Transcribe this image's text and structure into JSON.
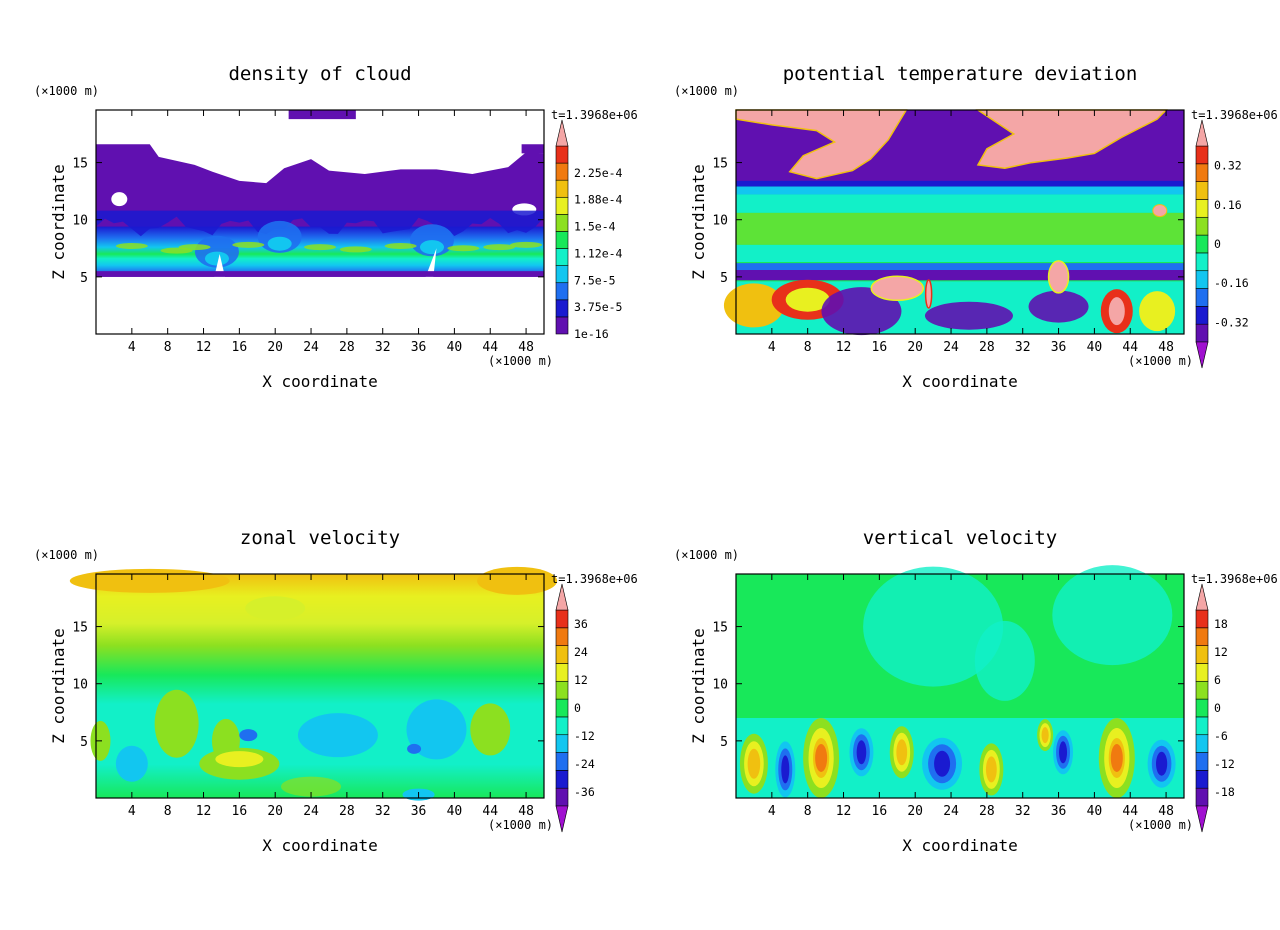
{
  "palette": [
    "#6010b0",
    "#1a1ad0",
    "#1f6ff0",
    "#12c6f0",
    "#12f0c8",
    "#18e85a",
    "#8ce020",
    "#e8f020",
    "#f0c010",
    "#f07a10",
    "#e8301a"
  ],
  "over_color": "#f4a6a6",
  "under_color": "#a010d0",
  "chart_data": [
    {
      "type": "heatmap",
      "title": "density of cloud",
      "xlabel": "X coordinate",
      "ylabel": "Z coordinate",
      "x_unit": "(×1000 m)",
      "y_unit": "(×1000 m)",
      "time_label": "t=1.3968e+06",
      "xlim": [
        0,
        50
      ],
      "ylim": [
        0,
        19.6
      ],
      "x_ticks": [
        "4",
        "8",
        "12",
        "16",
        "20",
        "24",
        "28",
        "32",
        "36",
        "40",
        "44",
        "48"
      ],
      "y_ticks": [
        "5",
        "10",
        "15"
      ],
      "colorbar_labels": [
        "1e-16",
        "3.75e-5",
        "7.5e-5",
        "1.12e-4",
        "1.5e-4",
        "1.88e-4",
        "2.25e-4"
      ],
      "colorbar_upper_arrow": true,
      "colorbar_lower_arrow": false
    },
    {
      "type": "heatmap",
      "title": "potential temperature deviation",
      "xlabel": "X coordinate",
      "ylabel": "Z coordinate",
      "x_unit": "(×1000 m)",
      "y_unit": "(×1000 m)",
      "time_label": "t=1.3968e+06",
      "xlim": [
        0,
        50
      ],
      "ylim": [
        0,
        19.6
      ],
      "x_ticks": [
        "4",
        "8",
        "12",
        "16",
        "20",
        "24",
        "28",
        "32",
        "36",
        "40",
        "44",
        "48"
      ],
      "y_ticks": [
        "5",
        "10",
        "15"
      ],
      "colorbar_labels": [
        "-0.32",
        "-0.16",
        "0",
        "0.16",
        "0.32"
      ],
      "colorbar_upper_arrow": true,
      "colorbar_lower_arrow": true
    },
    {
      "type": "heatmap",
      "title": "zonal velocity",
      "xlabel": "X coordinate",
      "ylabel": "Z coordinate",
      "x_unit": "(×1000 m)",
      "y_unit": "(×1000 m)",
      "time_label": "t=1.3968e+06",
      "xlim": [
        0,
        50
      ],
      "ylim": [
        0,
        19.6
      ],
      "x_ticks": [
        "4",
        "8",
        "12",
        "16",
        "20",
        "24",
        "28",
        "32",
        "36",
        "40",
        "44",
        "48"
      ],
      "y_ticks": [
        "5",
        "10",
        "15"
      ],
      "colorbar_labels": [
        "-36",
        "-24",
        "-12",
        "0",
        "12",
        "24",
        "36"
      ],
      "colorbar_upper_arrow": true,
      "colorbar_lower_arrow": true
    },
    {
      "type": "heatmap",
      "title": "vertical velocity",
      "xlabel": "X coordinate",
      "ylabel": "Z coordinate",
      "x_unit": "(×1000 m)",
      "y_unit": "(×1000 m)",
      "time_label": "t=1.3968e+06",
      "xlim": [
        0,
        50
      ],
      "ylim": [
        0,
        19.6
      ],
      "x_ticks": [
        "4",
        "8",
        "12",
        "16",
        "20",
        "24",
        "28",
        "32",
        "36",
        "40",
        "44",
        "48"
      ],
      "y_ticks": [
        "5",
        "10",
        "15"
      ],
      "colorbar_labels": [
        "-18",
        "-12",
        "-6",
        "0",
        "6",
        "12",
        "18"
      ],
      "colorbar_upper_arrow": true,
      "colorbar_lower_arrow": true
    }
  ]
}
